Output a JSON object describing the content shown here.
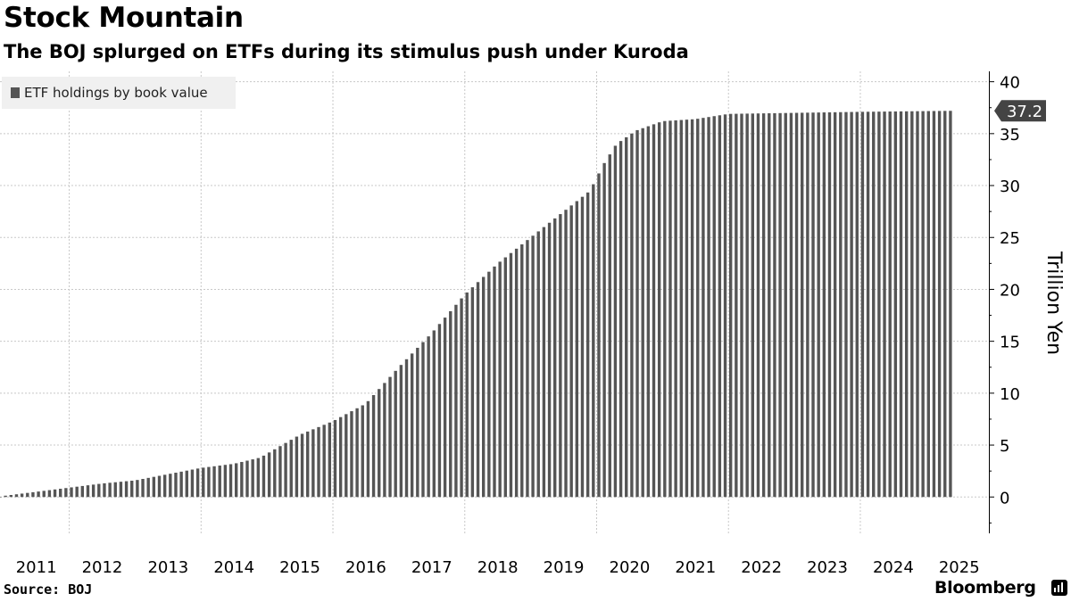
{
  "title": "Stock Mountain",
  "subtitle": "The BOJ splurged on ETFs during its stimulus push under Kuroda",
  "legend": {
    "label": "ETF holdings by book value",
    "swatch_color": "#555555"
  },
  "footer": {
    "source": "Source: BOJ",
    "brand": "Bloomberg",
    "brand_icon": "bloomberg-terminal-icon"
  },
  "chart_data": {
    "type": "bar",
    "title": "Stock Mountain",
    "subtitle": "The BOJ splurged on ETFs during its stimulus push under Kuroda",
    "ylabel": "Trillion Yen",
    "ylim": [
      -3.5,
      41
    ],
    "yticks": [
      0,
      5,
      10,
      15,
      20,
      25,
      30,
      35,
      40
    ],
    "xlim": [
      2010.95,
      2025.95
    ],
    "x_tick_labels": [
      "2011",
      "2012",
      "2013",
      "2014",
      "2015",
      "2016",
      "2017",
      "2018",
      "2019",
      "2020",
      "2021",
      "2022",
      "2023",
      "2024",
      "2025"
    ],
    "grid": true,
    "legend_position": "top-left",
    "last_value_label": "37.2",
    "bar_color": "#555555",
    "series": [
      {
        "name": "ETF holdings by book value",
        "anchors": [
          [
            2010.95,
            0.0
          ],
          [
            2011.0,
            0.1
          ],
          [
            2011.5,
            0.5
          ],
          [
            2012.0,
            0.9
          ],
          [
            2012.5,
            1.3
          ],
          [
            2013.0,
            1.6
          ],
          [
            2013.5,
            2.2
          ],
          [
            2014.0,
            2.8
          ],
          [
            2014.5,
            3.2
          ],
          [
            2014.9,
            3.8
          ],
          [
            2015.5,
            6.0
          ],
          [
            2016.0,
            7.3
          ],
          [
            2016.5,
            9.0
          ],
          [
            2017.0,
            12.5
          ],
          [
            2017.5,
            15.8
          ],
          [
            2018.0,
            19.5
          ],
          [
            2018.5,
            22.5
          ],
          [
            2019.0,
            25.0
          ],
          [
            2019.5,
            27.5
          ],
          [
            2019.9,
            29.5
          ],
          [
            2020.1,
            32.0
          ],
          [
            2020.3,
            34.0
          ],
          [
            2020.6,
            35.3
          ],
          [
            2021.0,
            36.2
          ],
          [
            2021.5,
            36.4
          ],
          [
            2022.0,
            36.9
          ],
          [
            2023.0,
            37.0
          ],
          [
            2024.0,
            37.1
          ],
          [
            2025.4,
            37.2
          ]
        ]
      }
    ]
  }
}
